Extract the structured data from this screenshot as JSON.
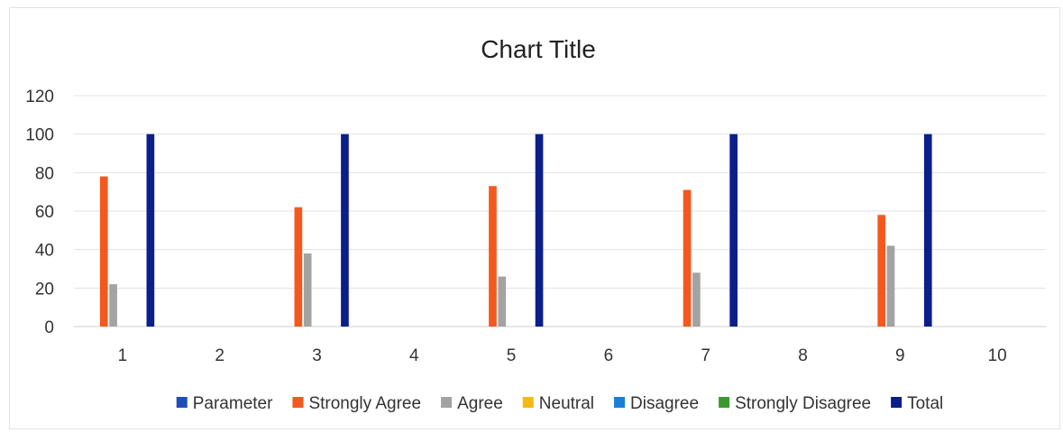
{
  "chart_data": {
    "type": "bar",
    "title": "Chart Title",
    "xlabel": "",
    "ylabel": "",
    "categories": [
      "1",
      "2",
      "3",
      "4",
      "5",
      "6",
      "7",
      "8",
      "9",
      "10"
    ],
    "ylim": [
      0,
      120
    ],
    "yticks": [
      0,
      20,
      40,
      60,
      80,
      100,
      120
    ],
    "grid": true,
    "legend_position": "bottom",
    "series": [
      {
        "name": "Parameter",
        "color": "#1f4fb5",
        "values": [
          null,
          null,
          null,
          null,
          null,
          null,
          null,
          null,
          null,
          null
        ]
      },
      {
        "name": "Strongly Agree",
        "color": "#f4581f",
        "values": [
          78,
          null,
          62,
          null,
          73,
          null,
          71,
          null,
          58,
          null
        ]
      },
      {
        "name": "Agree",
        "color": "#a3a3a3",
        "values": [
          22,
          null,
          38,
          null,
          26,
          null,
          28,
          null,
          42,
          null
        ]
      },
      {
        "name": "Neutral",
        "color": "#f6b913",
        "values": [
          0,
          null,
          0,
          null,
          0,
          null,
          0,
          null,
          0,
          null
        ]
      },
      {
        "name": "Disagree",
        "color": "#1a7fd6",
        "values": [
          0,
          null,
          0,
          null,
          0,
          null,
          0,
          null,
          0,
          null
        ]
      },
      {
        "name": "Strongly Disagree",
        "color": "#3a9a2e",
        "values": [
          0,
          null,
          0,
          null,
          0,
          null,
          0,
          null,
          0,
          null
        ]
      },
      {
        "name": "Total",
        "color": "#0b1f8a",
        "values": [
          100,
          null,
          100,
          null,
          100,
          null,
          100,
          null,
          100,
          null
        ]
      }
    ]
  }
}
